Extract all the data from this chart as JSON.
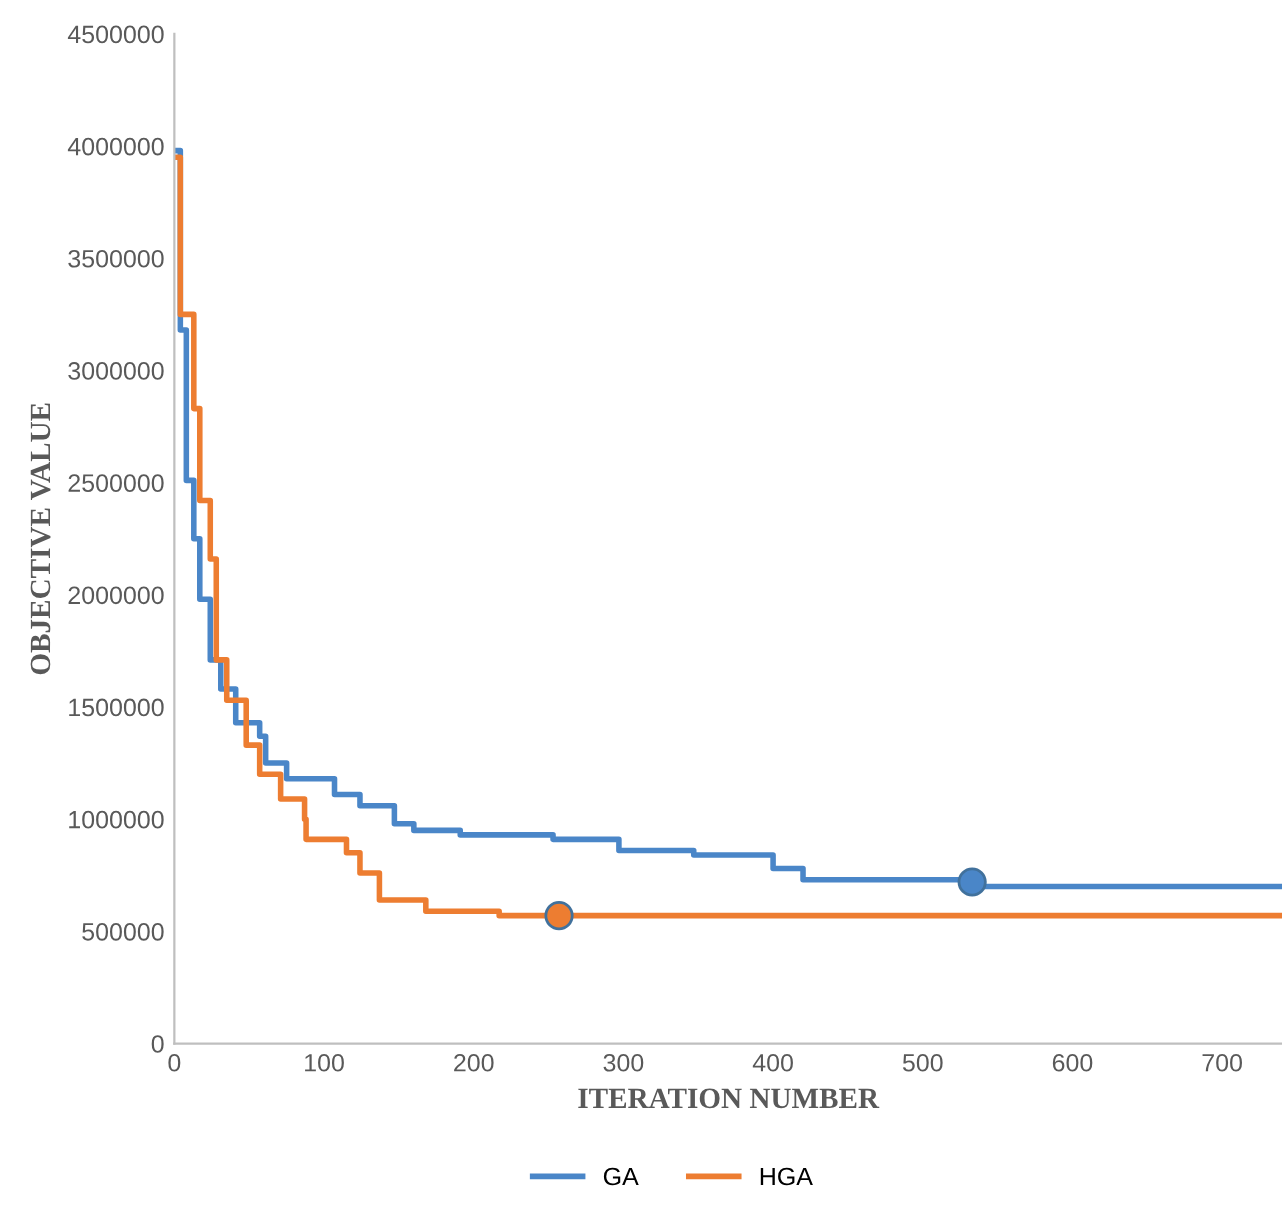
{
  "chart_data": {
    "type": "step",
    "xlabel": "ITERATION NUMBER",
    "ylabel": "OBJECTIVE VALUE",
    "xlim": [
      0,
      740
    ],
    "ylim": [
      0,
      4500000
    ],
    "xticks": [
      0,
      100,
      200,
      300,
      400,
      500,
      600,
      700
    ],
    "yticks": [
      0,
      500000,
      1000000,
      1500000,
      2000000,
      2500000,
      3000000,
      3500000,
      4000000,
      4500000
    ],
    "grid": false,
    "legend": "bottom",
    "marker": "none",
    "series": [
      {
        "name": "GA",
        "color": "#4a86c8",
        "x": [
          0,
          4,
          8,
          13,
          17,
          24,
          31,
          41,
          57,
          61,
          75,
          107,
          124,
          147,
          160,
          191,
          253,
          297,
          347,
          400,
          420,
          533,
          740
        ],
        "values": [
          3980000,
          3180000,
          2510000,
          2250000,
          1980000,
          1710000,
          1580000,
          1430000,
          1370000,
          1250000,
          1180000,
          1110000,
          1060000,
          980000,
          950000,
          930000,
          910000,
          860000,
          840000,
          780000,
          730000,
          700000,
          700000
        ]
      },
      {
        "name": "HGA",
        "color": "#ed7d31",
        "x": [
          0,
          4,
          13,
          17,
          24,
          28,
          35,
          48,
          57,
          71,
          87,
          88,
          115,
          124,
          137,
          168,
          217,
          740
        ],
        "values": [
          3950000,
          3250000,
          2830000,
          2420000,
          2160000,
          1710000,
          1530000,
          1330000,
          1200000,
          1090000,
          1000000,
          910000,
          850000,
          760000,
          640000,
          590000,
          570000,
          570000
        ]
      },
      {
        "type": "scatter",
        "marker": "circle",
        "color": "#4a86c8",
        "x": [
          533
        ],
        "values": [
          720000
        ]
      },
      {
        "type": "scatter",
        "marker": "circle",
        "color": "#ed7d31",
        "x": [
          257
        ],
        "values": [
          570000
        ]
      }
    ]
  }
}
